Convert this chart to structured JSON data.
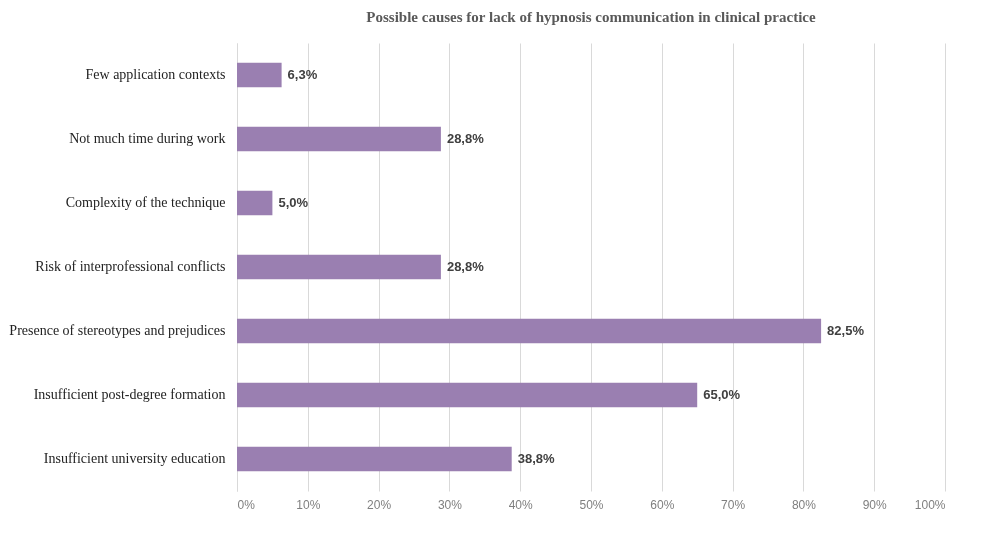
{
  "chart_data": {
    "type": "bar",
    "orientation": "horizontal",
    "title": "Possible causes for lack of hypnosis communication in clinical practice",
    "categories": [
      "Few application contexts",
      "Not much time during work",
      "Complexity of the technique",
      "Risk of interprofessional conflicts",
      "Presence of stereotypes and prejudices",
      "Insufficient post-degree formation",
      "Insufficient university education"
    ],
    "values": [
      6.3,
      28.8,
      5.0,
      28.8,
      82.5,
      65.0,
      38.8
    ],
    "value_labels": [
      "6,3%",
      "28,8%",
      "5,0%",
      "28,8%",
      "82,5%",
      "65,0%",
      "38,8%"
    ],
    "color": "#9a7fb1",
    "xlim": [
      0,
      100
    ],
    "xticks": [
      {
        "value": 0,
        "label": "0%"
      },
      {
        "value": 10,
        "label": "10%"
      },
      {
        "value": 20,
        "label": "20%"
      },
      {
        "value": 30,
        "label": "30%"
      },
      {
        "value": 40,
        "label": "40%"
      },
      {
        "value": 50,
        "label": "50%"
      },
      {
        "value": 60,
        "label": "60%"
      },
      {
        "value": 70,
        "label": "70%"
      },
      {
        "value": 80,
        "label": "80%"
      },
      {
        "value": 90,
        "label": "90%"
      },
      {
        "value": 100,
        "label": "100%"
      }
    ],
    "grid": "x"
  }
}
